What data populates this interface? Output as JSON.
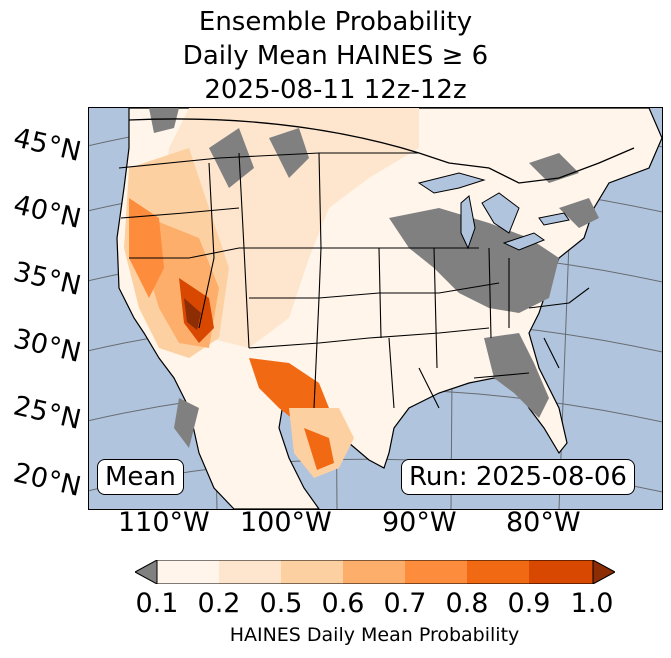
{
  "title": {
    "line1": "Ensemble Probability",
    "line2": "Daily Mean HAINES ≥ 6",
    "line3": "2025-08-11 12z-12z"
  },
  "map": {
    "ocean_color": "#b0c4de",
    "land_color": "#fff5eb",
    "missing_color": "#808080",
    "lat_labels": [
      "45°N",
      "40°N",
      "35°N",
      "30°N",
      "25°N",
      "20°N"
    ],
    "lon_labels": [
      "110°W",
      "100°W",
      "90°W",
      "80°W"
    ],
    "stat_box": "Mean",
    "run_box": "Run: 2025-08-06"
  },
  "colorbar": {
    "ticks": [
      "0.1",
      "0.2",
      "0.5",
      "0.6",
      "0.7",
      "0.8",
      "0.9",
      "1.0"
    ],
    "colors": [
      "#fff5eb",
      "#fee6ce",
      "#fdd0a2",
      "#fdae6b",
      "#fd8d3c",
      "#f16913",
      "#d94801",
      "#8c2d04"
    ],
    "under_color": "#808080",
    "label": "HAINES Daily Mean Probability"
  }
}
